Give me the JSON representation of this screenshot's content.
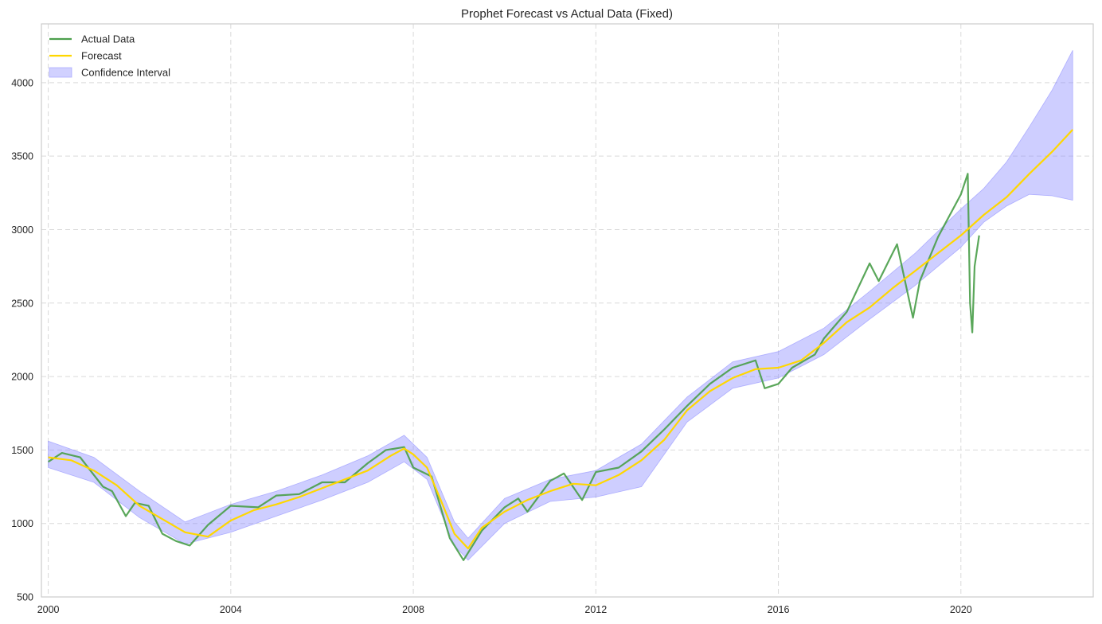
{
  "chart_data": {
    "type": "line",
    "title": "Prophet Forecast vs Actual Data (Fixed)",
    "xlabel": "",
    "ylabel": "",
    "xlim": [
      1999.85,
      2022.9
    ],
    "ylim": [
      500,
      4400
    ],
    "x_ticks": [
      2000,
      2004,
      2008,
      2012,
      2016,
      2020
    ],
    "y_ticks": [
      500,
      1000,
      1500,
      2000,
      2500,
      3000,
      3500,
      4000
    ],
    "grid": true,
    "legend_position": "top-left",
    "legend": [
      {
        "label": "Actual Data",
        "kind": "line",
        "color": "#4c9f4c"
      },
      {
        "label": "Forecast",
        "kind": "line",
        "color": "#ffd700"
      },
      {
        "label": "Confidence Interval",
        "kind": "band",
        "color": "#9999ff"
      }
    ],
    "colors": {
      "actual": "#4c9f4c",
      "forecast": "#ffd700",
      "band": "#8a8aff"
    },
    "forecast": {
      "x": [
        2000.0,
        2000.5,
        2001.0,
        2001.5,
        2002.0,
        2002.5,
        2003.0,
        2003.5,
        2004.0,
        2004.5,
        2005.0,
        2005.5,
        2006.0,
        2006.5,
        2007.0,
        2007.5,
        2007.8,
        2008.0,
        2008.3,
        2008.6,
        2008.9,
        2009.2,
        2009.5,
        2010.0,
        2010.5,
        2011.0,
        2011.5,
        2012.0,
        2012.5,
        2013.0,
        2013.5,
        2014.0,
        2014.5,
        2015.0,
        2015.5,
        2016.0,
        2016.5,
        2017.0,
        2017.5,
        2018.0,
        2018.5,
        2019.0,
        2019.5,
        2020.0,
        2020.5,
        2021.0,
        2021.5,
        2022.0,
        2022.45
      ],
      "y": [
        1450,
        1430,
        1360,
        1260,
        1120,
        1030,
        940,
        910,
        1020,
        1090,
        1130,
        1180,
        1240,
        1300,
        1360,
        1460,
        1510,
        1470,
        1380,
        1160,
        930,
        830,
        970,
        1080,
        1160,
        1220,
        1270,
        1260,
        1330,
        1430,
        1570,
        1770,
        1900,
        1990,
        2050,
        2060,
        2110,
        2230,
        2370,
        2470,
        2600,
        2720,
        2840,
        2960,
        3100,
        3220,
        3380,
        3530,
        3680
      ]
    },
    "confidence_interval": {
      "x": [
        2000.0,
        2001.0,
        2002.0,
        2003.0,
        2004.0,
        2005.0,
        2006.0,
        2007.0,
        2007.8,
        2008.3,
        2008.9,
        2009.2,
        2010.0,
        2011.0,
        2012.0,
        2013.0,
        2014.0,
        2015.0,
        2016.0,
        2017.0,
        2018.0,
        2019.0,
        2020.0,
        2020.5,
        2021.0,
        2021.5,
        2022.0,
        2022.45
      ],
      "lower": [
        1380,
        1280,
        1040,
        860,
        940,
        1050,
        1160,
        1280,
        1420,
        1300,
        850,
        750,
        1000,
        1150,
        1180,
        1250,
        1690,
        1920,
        1990,
        2150,
        2390,
        2620,
        2880,
        3050,
        3160,
        3240,
        3230,
        3200
      ],
      "upper": [
        1560,
        1450,
        1220,
        1010,
        1130,
        1220,
        1330,
        1460,
        1600,
        1450,
        1010,
        900,
        1170,
        1300,
        1360,
        1540,
        1860,
        2100,
        2170,
        2330,
        2580,
        2840,
        3140,
        3280,
        3460,
        3700,
        3950,
        4220
      ]
    },
    "actual": {
      "x": [
        2000.0,
        2000.3,
        2000.7,
        2001.0,
        2001.2,
        2001.4,
        2001.7,
        2001.9,
        2002.2,
        2002.5,
        2002.8,
        2003.1,
        2003.5,
        2004.0,
        2004.6,
        2005.0,
        2005.5,
        2006.0,
        2006.5,
        2007.0,
        2007.4,
        2007.8,
        2008.0,
        2008.4,
        2008.8,
        2009.1,
        2009.5,
        2010.0,
        2010.3,
        2010.5,
        2011.0,
        2011.3,
        2011.7,
        2012.0,
        2012.5,
        2013.0,
        2013.5,
        2014.0,
        2014.5,
        2015.0,
        2015.5,
        2015.7,
        2016.0,
        2016.3,
        2016.8,
        2017.0,
        2017.5,
        2018.0,
        2018.2,
        2018.6,
        2018.95,
        2019.1,
        2019.5,
        2020.0,
        2020.15,
        2020.2,
        2020.25,
        2020.3,
        2020.4
      ],
      "y": [
        1420,
        1480,
        1450,
        1330,
        1250,
        1220,
        1050,
        1140,
        1120,
        930,
        880,
        850,
        990,
        1120,
        1110,
        1190,
        1200,
        1280,
        1280,
        1410,
        1500,
        1520,
        1380,
        1320,
        900,
        750,
        950,
        1110,
        1170,
        1080,
        1290,
        1340,
        1160,
        1350,
        1380,
        1490,
        1640,
        1800,
        1950,
        2060,
        2110,
        1920,
        1950,
        2060,
        2150,
        2260,
        2440,
        2770,
        2650,
        2900,
        2400,
        2650,
        2950,
        3240,
        3380,
        2500,
        2300,
        2750,
        2960
      ]
    }
  }
}
